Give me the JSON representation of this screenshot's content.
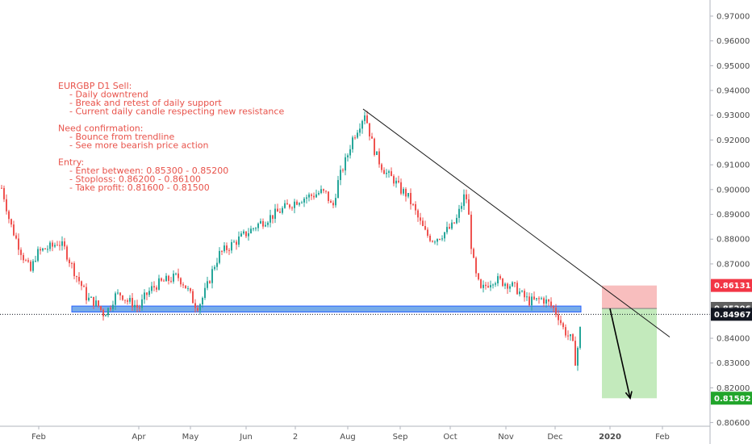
{
  "chart_data": {
    "type": "candlestick",
    "y_range": [
      0.8045,
      0.9765
    ],
    "y_ticks": [
      0.97,
      0.96,
      0.95,
      0.94,
      0.93,
      0.92,
      0.91,
      0.9,
      0.89,
      0.88,
      0.87,
      0.84,
      0.83,
      0.82,
      0.806
    ],
    "y_tick_labels": [
      "0.97000",
      "0.96000",
      "0.95000",
      "0.94000",
      "0.93000",
      "0.92000",
      "0.91000",
      "0.90000",
      "0.89000",
      "0.88000",
      "0.87000",
      "0.84000",
      "0.83000",
      "0.82000",
      "0.80600"
    ],
    "x_labels": [
      "Feb",
      "Apr",
      "May",
      "Jun",
      "2",
      "Aug",
      "Sep",
      "Oct",
      "Nov",
      "Dec",
      "2020",
      "Feb"
    ],
    "x_label_bold": [
      false,
      false,
      false,
      false,
      false,
      false,
      false,
      false,
      false,
      false,
      true,
      false
    ],
    "price_path": [
      [
        0,
        0.903
      ],
      [
        6,
        0.896
      ],
      [
        12,
        0.887
      ],
      [
        20,
        0.88
      ],
      [
        30,
        0.872
      ],
      [
        38,
        0.867
      ],
      [
        45,
        0.874
      ],
      [
        55,
        0.876
      ],
      [
        65,
        0.877
      ],
      [
        72,
        0.879
      ],
      [
        80,
        0.876
      ],
      [
        88,
        0.87
      ],
      [
        95,
        0.865
      ],
      [
        100,
        0.862
      ],
      [
        108,
        0.856
      ],
      [
        115,
        0.855
      ],
      [
        122,
        0.853
      ],
      [
        128,
        0.85
      ],
      [
        135,
        0.852
      ],
      [
        142,
        0.857
      ],
      [
        150,
        0.858
      ],
      [
        158,
        0.855
      ],
      [
        165,
        0.854
      ],
      [
        172,
        0.852
      ],
      [
        180,
        0.857
      ],
      [
        188,
        0.86
      ],
      [
        196,
        0.862
      ],
      [
        204,
        0.863
      ],
      [
        212,
        0.864
      ],
      [
        220,
        0.865
      ],
      [
        228,
        0.862
      ],
      [
        235,
        0.858
      ],
      [
        241,
        0.854
      ],
      [
        246,
        0.853
      ],
      [
        252,
        0.857
      ],
      [
        258,
        0.862
      ],
      [
        265,
        0.869
      ],
      [
        272,
        0.874
      ],
      [
        280,
        0.876
      ],
      [
        288,
        0.878
      ],
      [
        296,
        0.88
      ],
      [
        304,
        0.882
      ],
      [
        312,
        0.884
      ],
      [
        320,
        0.886
      ],
      [
        330,
        0.888
      ],
      [
        340,
        0.89
      ],
      [
        350,
        0.892
      ],
      [
        360,
        0.894
      ],
      [
        370,
        0.896
      ],
      [
        380,
        0.897
      ],
      [
        390,
        0.898
      ],
      [
        398,
        0.899
      ],
      [
        405,
        0.898
      ],
      [
        412,
        0.892
      ],
      [
        418,
        0.902
      ],
      [
        424,
        0.908
      ],
      [
        430,
        0.913
      ],
      [
        436,
        0.92
      ],
      [
        442,
        0.924
      ],
      [
        448,
        0.928
      ],
      [
        452,
        0.931
      ],
      [
        456,
        0.926
      ],
      [
        460,
        0.92
      ],
      [
        466,
        0.914
      ],
      [
        472,
        0.91
      ],
      [
        480,
        0.906
      ],
      [
        488,
        0.904
      ],
      [
        496,
        0.9
      ],
      [
        504,
        0.898
      ],
      [
        512,
        0.893
      ],
      [
        520,
        0.887
      ],
      [
        528,
        0.882
      ],
      [
        536,
        0.88
      ],
      [
        544,
        0.881
      ],
      [
        552,
        0.883
      ],
      [
        560,
        0.885
      ],
      [
        566,
        0.888
      ],
      [
        572,
        0.894
      ],
      [
        577,
        0.899
      ],
      [
        581,
        0.889
      ],
      [
        585,
        0.874
      ],
      [
        590,
        0.865
      ],
      [
        596,
        0.859
      ],
      [
        604,
        0.862
      ],
      [
        612,
        0.864
      ],
      [
        620,
        0.863
      ],
      [
        630,
        0.862
      ],
      [
        640,
        0.86
      ],
      [
        648,
        0.857
      ],
      [
        656,
        0.855
      ],
      [
        664,
        0.855
      ],
      [
        672,
        0.856
      ],
      [
        680,
        0.854
      ],
      [
        686,
        0.852
      ],
      [
        692,
        0.849
      ],
      [
        698,
        0.844
      ],
      [
        704,
        0.841
      ],
      [
        709,
        0.839
      ],
      [
        713,
        0.831
      ],
      [
        717,
        0.838
      ],
      [
        721,
        0.849
      ]
    ],
    "trendline": [
      [
        450,
        0.9325
      ],
      [
        830,
        0.8405
      ]
    ],
    "support_zone": {
      "x0": 89,
      "x1": 720,
      "y_high": 0.853,
      "y_low": 0.8506
    },
    "current_price": 0.84967,
    "current_price_label": "0.84967",
    "risk_zone": {
      "x0": 746,
      "x1": 814,
      "y_high": 0.8613,
      "y_low": 0.852
    },
    "reward_zone": {
      "x0": 746,
      "x1": 814,
      "y_high": 0.852,
      "y_low": 0.8158
    },
    "arrow": {
      "from": [
        756,
        0.852
      ],
      "to": [
        781,
        0.8158
      ]
    },
    "price_labels": [
      {
        "text": "0.86131",
        "value": 0.86131,
        "color": "#f23645"
      },
      {
        "text": "0.85206",
        "value": 0.85206,
        "color": "#5f5f5f"
      },
      {
        "text": "0.84967",
        "value": 0.84967,
        "color": "#131722"
      },
      {
        "text": "0.81582",
        "value": 0.81582,
        "color": "#22a52b"
      }
    ],
    "annotation_lines": [
      {
        "text": "EURGBP D1 Sell:",
        "indent": false
      },
      {
        "text": "- Daily downtrend",
        "indent": true
      },
      {
        "text": "- Break and retest of daily support",
        "indent": true
      },
      {
        "text": "- Current daily candle respecting new resistance",
        "indent": true
      },
      {
        "text": "",
        "indent": false
      },
      {
        "text": "Need confirmation:",
        "indent": false
      },
      {
        "text": "- Bounce from trendline",
        "indent": true
      },
      {
        "text": "- See more bearish price action",
        "indent": true
      },
      {
        "text": "",
        "indent": false
      },
      {
        "text": "Entry:",
        "indent": false
      },
      {
        "text": "- Enter between: 0.85300 - 0.85200",
        "indent": true
      },
      {
        "text": "- Stoploss: 0.86200 - 0.86100",
        "indent": true
      },
      {
        "text": "- Take profit: 0.81600 - 0.81500",
        "indent": true
      }
    ],
    "colors": {
      "up": "#26a69a",
      "down": "#ef5350",
      "support_fill": "#4a90e2",
      "risk_fill": "#f7b3b3",
      "reward_fill": "#b8e6b0",
      "annotation": "#e8524a"
    }
  }
}
